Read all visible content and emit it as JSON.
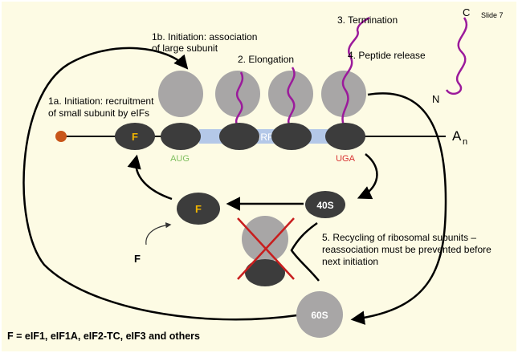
{
  "slide": {
    "slide_number_text": "Slide 7",
    "footer_text": "F = eIF1, eIF1A, eIF2-TC, eIF3 and others"
  },
  "labels": {
    "step_1a_line1": "1a. Initiation: recruitment",
    "step_1a_line2": "of small subunit by eIFs",
    "step_1b_line1": "1b. Initiation: association",
    "step_1b_line2": "of large subunit",
    "step_2": "2. Elongation",
    "step_3": "3. Termination",
    "step_4": "4. Peptide release",
    "step_5_line1": "5. Recycling of ribosomal subunits –",
    "step_5_line2": "reassociation must be prevented before",
    "step_5_line3": "next initiation"
  },
  "mrna": {
    "start_codon": "AUG",
    "stop_codon": "UGA",
    "orf_fragment": "ORF",
    "poly_a_main": "A",
    "poly_a_sub": "n"
  },
  "particles": {
    "factor": "F",
    "factor_free": "F",
    "factor_input": "F",
    "small_subunit": "40S",
    "large_subunit": "60S"
  },
  "peptide": {
    "c_terminus": "C",
    "n_terminus": "N"
  },
  "colors": {
    "background": "#fdfbe4",
    "large_subunit": "#a8a6a6",
    "small_subunit": "#3c3c3c",
    "orf": "#b4c8e8",
    "peptide": "#9b1a9b",
    "cap": "#c8561a",
    "start_codon": "#7fbf5f",
    "stop_codon": "#d83232",
    "factor_text": "#f0b400",
    "cross": "#c81e1e"
  }
}
